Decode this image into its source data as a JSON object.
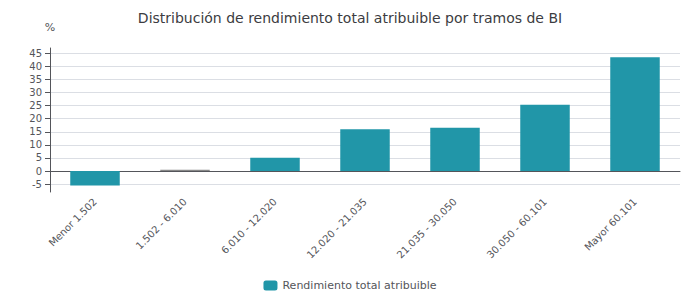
{
  "chart_data": {
    "type": "bar",
    "title": "Distribución de rendimiento total atribuible por tramos de BI",
    "categories": [
      "Menor 1.502",
      "1.502 - 6.010",
      "6.010 - 12.020",
      "12.020 - 21.035",
      "21.035 - 30.050",
      "30.050 - 60.101",
      "Mayor 60.101"
    ],
    "series": [
      {
        "name": "Rendimiento total atribuible",
        "color": "#2196a8",
        "values": [
          -5.5,
          0.5,
          5.1,
          16.0,
          16.5,
          25.3,
          43.5
        ],
        "colors": [
          "#2196a8",
          "#888888",
          "#2196a8",
          "#2196a8",
          "#2196a8",
          "#2196a8",
          "#2196a8"
        ]
      }
    ],
    "ylabel": "%",
    "ylim": [
      -8,
      47
    ],
    "yticks": [
      -5,
      0,
      5,
      10,
      15,
      20,
      25,
      30,
      35,
      40,
      45
    ],
    "grid": true,
    "legend": "bottom"
  }
}
